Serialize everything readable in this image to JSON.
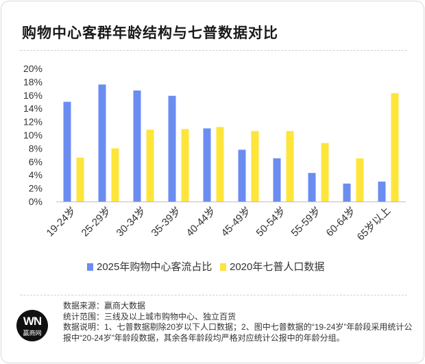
{
  "chart_data": {
    "type": "bar",
    "title": "购物中心客群年龄结构与七普数据对比",
    "categories": [
      "19-24岁",
      "25-29岁",
      "30-34岁",
      "35-39岁",
      "40-44岁",
      "45-49岁",
      "50-54岁",
      "55-59岁",
      "60-64岁",
      "65岁以上"
    ],
    "series": [
      {
        "name": "2025年购物中心客流占比",
        "color": "#6b8df2",
        "values": [
          15.0,
          17.6,
          16.7,
          15.9,
          11.0,
          7.8,
          6.5,
          4.3,
          2.7,
          3.0
        ]
      },
      {
        "name": "2020年七普人口数据",
        "color": "#fde53a",
        "values": [
          6.6,
          8.0,
          10.8,
          10.9,
          11.2,
          10.6,
          10.6,
          8.8,
          6.5,
          16.3
        ]
      }
    ],
    "yticks": [
      "0%",
      "2%",
      "4%",
      "6%",
      "8%",
      "10%",
      "12%",
      "14%",
      "16%",
      "18%",
      "20%"
    ],
    "ylim": [
      0,
      20
    ],
    "xlabel": "",
    "ylabel": "",
    "grid": false,
    "legend_position": "bottom"
  },
  "footer": {
    "line1": "数据来源：赢商大数据",
    "line2": "统计范围：三线及以上城市购物中心、独立百货",
    "line3": "数据说明：1、七普数据剔除20岁以下人口数据；2、图中七普数据的“19-24岁”年龄段采用统计公报中“20-24岁”年龄段数据，其余各年龄段均严格对应统计公报中的年龄分组。"
  },
  "logo": {
    "mark": "WN",
    "text": "赢商网"
  }
}
